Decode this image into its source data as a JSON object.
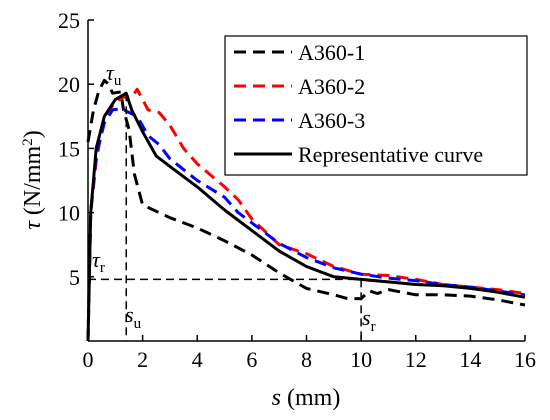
{
  "chart_data": {
    "type": "line",
    "xlabel": {
      "var": "s",
      "unit": " (mm)"
    },
    "ylabel": {
      "var": "τ",
      "unit": " (N/mm",
      "sup": "2",
      "close": ")"
    },
    "xlim": [
      0,
      16
    ],
    "ylim": [
      0,
      25
    ],
    "xticks": [
      0,
      2,
      4,
      6,
      8,
      10,
      12,
      14,
      16
    ],
    "yticks": [
      5,
      10,
      15,
      20,
      25
    ],
    "grid": false,
    "legend_position": "top-right",
    "series": [
      {
        "name": "A360-1",
        "color": "#000000",
        "dash": "dashed",
        "points": [
          [
            0,
            15.5
          ],
          [
            0.2,
            18
          ],
          [
            0.4,
            19.5
          ],
          [
            0.6,
            20.3
          ],
          [
            0.75,
            20
          ],
          [
            0.9,
            19.3
          ],
          [
            1.2,
            19.4
          ],
          [
            1.3,
            18
          ],
          [
            1.5,
            16.5
          ],
          [
            1.7,
            13
          ],
          [
            2,
            10.6
          ],
          [
            3,
            9.6
          ],
          [
            4,
            8.8
          ],
          [
            5,
            7.8
          ],
          [
            6,
            6.7
          ],
          [
            7,
            5.3
          ],
          [
            8,
            4.1
          ],
          [
            9,
            3.6
          ],
          [
            9.5,
            3.3
          ],
          [
            10,
            3.3
          ],
          [
            10.3,
            3.9
          ],
          [
            10.6,
            3.7
          ],
          [
            11,
            4
          ],
          [
            12,
            3.6
          ],
          [
            13,
            3.6
          ],
          [
            14,
            3.5
          ],
          [
            15,
            3.2
          ],
          [
            16,
            2.8
          ]
        ]
      },
      {
        "name": "A360-2",
        "color": "#ff0000",
        "dash": "dashed",
        "points": [
          [
            0,
            0
          ],
          [
            0.1,
            10
          ],
          [
            0.3,
            14
          ],
          [
            0.6,
            17.5
          ],
          [
            1,
            18.6
          ],
          [
            1.3,
            19
          ],
          [
            1.6,
            19
          ],
          [
            1.8,
            19.6
          ],
          [
            2.2,
            18
          ],
          [
            2.6,
            17.8
          ],
          [
            3,
            16.8
          ],
          [
            3.5,
            15
          ],
          [
            4,
            13.8
          ],
          [
            5,
            12
          ],
          [
            5.5,
            11
          ],
          [
            6,
            9.5
          ],
          [
            7,
            7.5
          ],
          [
            8,
            6.8
          ],
          [
            9,
            5.8
          ],
          [
            10,
            5.2
          ],
          [
            11,
            5.1
          ],
          [
            12,
            4.8
          ],
          [
            13,
            4.4
          ],
          [
            14,
            4.2
          ],
          [
            15,
            4
          ],
          [
            16,
            3.7
          ]
        ]
      },
      {
        "name": "A360-3",
        "color": "#0000ff",
        "dash": "dashed",
        "points": [
          [
            0,
            0
          ],
          [
            0.1,
            10
          ],
          [
            0.3,
            14.5
          ],
          [
            0.6,
            17
          ],
          [
            0.9,
            18
          ],
          [
            1.2,
            18.1
          ],
          [
            1.5,
            17.8
          ],
          [
            1.8,
            17.5
          ],
          [
            2.2,
            16
          ],
          [
            2.6,
            15.3
          ],
          [
            3,
            14.2
          ],
          [
            4,
            12.5
          ],
          [
            5,
            11.2
          ],
          [
            5.5,
            10
          ],
          [
            6,
            9.2
          ],
          [
            7,
            7.6
          ],
          [
            8,
            6.5
          ],
          [
            9,
            5.7
          ],
          [
            10,
            5.2
          ],
          [
            11,
            4.9
          ],
          [
            12,
            4.7
          ],
          [
            13,
            4.4
          ],
          [
            14,
            4.2
          ],
          [
            15,
            3.9
          ],
          [
            16,
            3.6
          ]
        ]
      },
      {
        "name": "Representative curve",
        "color": "#000000",
        "dash": "solid",
        "points": [
          [
            0,
            0
          ],
          [
            0.1,
            10
          ],
          [
            0.3,
            15
          ],
          [
            0.6,
            17.5
          ],
          [
            1,
            18.8
          ],
          [
            1.4,
            19.3
          ],
          [
            1.6,
            18
          ],
          [
            2,
            16.3
          ],
          [
            2.5,
            14.4
          ],
          [
            3,
            13.6
          ],
          [
            4,
            12
          ],
          [
            5,
            10.2
          ],
          [
            6,
            8.6
          ],
          [
            7,
            7
          ],
          [
            8,
            5.8
          ],
          [
            9,
            5
          ],
          [
            10,
            4.8
          ],
          [
            11,
            4.6
          ],
          [
            12,
            4.4
          ],
          [
            13,
            4.3
          ],
          [
            14,
            4.1
          ],
          [
            15,
            3.8
          ],
          [
            16,
            3.4
          ]
        ]
      }
    ],
    "annotations": {
      "tau_u": {
        "base": "τ",
        "sub": "u",
        "x": 1.4,
        "y": 19.3
      },
      "tau_r": {
        "base": "τ",
        "sub": "r",
        "y": 4.8
      },
      "s_u": {
        "base": "s",
        "sub": "u",
        "x": 1.4
      },
      "s_r": {
        "base": "s",
        "sub": "r",
        "x": 10
      }
    }
  }
}
